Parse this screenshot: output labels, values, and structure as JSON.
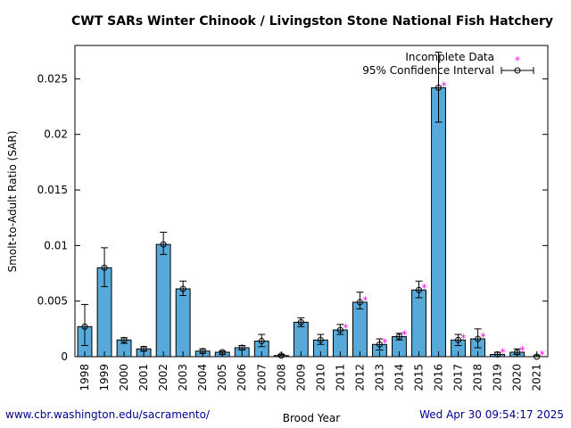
{
  "chart_data": {
    "type": "bar",
    "title": "CWT SARs Winter Chinook  / Livingston Stone National Fish Hatchery",
    "xlabel": "Brood Year",
    "ylabel": "Smolt-to-Adult Ratio (SAR)",
    "ylim": [
      0,
      0.028
    ],
    "yticks": [
      "0",
      "0.005",
      "0.01",
      "0.015",
      "0.02",
      "0.025"
    ],
    "ytick_values": [
      0,
      0.005,
      0.01,
      0.015,
      0.02,
      0.025
    ],
    "grid": false,
    "legend_position": "top-right",
    "legend": {
      "incomplete": "Incomplete Data",
      "ci": "95% Confidence Interval"
    },
    "colors": {
      "bar": "#56a9d9",
      "incomplete_marker": "#ff00ff",
      "footer": "#00008b"
    },
    "categories": [
      "1998",
      "1999",
      "2000",
      "2001",
      "2002",
      "2003",
      "2004",
      "2005",
      "2006",
      "2007",
      "2008",
      "2009",
      "2010",
      "2011",
      "2012",
      "2013",
      "2014",
      "2015",
      "2016",
      "2017",
      "2018",
      "2019",
      "2020",
      "2021"
    ],
    "values": [
      0.0027,
      0.008,
      0.0015,
      0.0007,
      0.0101,
      0.0061,
      0.0005,
      0.0004,
      0.0008,
      0.0014,
      0.0001,
      0.0031,
      0.0015,
      0.0024,
      0.0049,
      0.0011,
      0.0018,
      0.006,
      0.0242,
      0.0015,
      0.0016,
      0.0002,
      0.0004,
      0.0
    ],
    "ci_low": [
      0.001,
      0.0063,
      0.0012,
      0.0005,
      0.0092,
      0.0055,
      0.0003,
      0.0002,
      0.0006,
      0.0009,
      0.0,
      0.0027,
      0.0011,
      0.002,
      0.0043,
      0.0006,
      0.0015,
      0.0053,
      0.0211,
      0.001,
      0.0008,
      0.0,
      0.0002,
      0.0
    ],
    "ci_high": [
      0.0047,
      0.0098,
      0.0017,
      0.0009,
      0.0112,
      0.0068,
      0.0007,
      0.0005,
      0.001,
      0.002,
      0.0002,
      0.0035,
      0.002,
      0.0029,
      0.0058,
      0.0016,
      0.0021,
      0.0068,
      0.0274,
      0.002,
      0.0025,
      0.0004,
      0.0007,
      0.0001
    ],
    "incomplete": [
      "2011",
      "2012",
      "2013",
      "2014",
      "2015",
      "2016",
      "2017",
      "2018",
      "2019",
      "2020",
      "2021"
    ]
  },
  "footer": {
    "left": "www.cbr.washington.edu/sacramento/",
    "right": "Wed Apr 30 09:54:17 2025"
  }
}
